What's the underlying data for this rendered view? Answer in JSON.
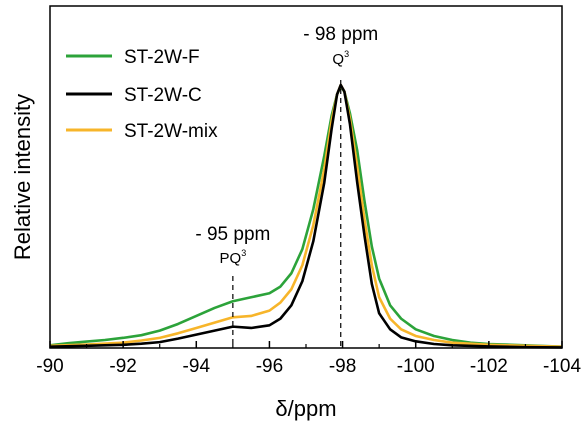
{
  "chart_data": {
    "type": "line",
    "xlabel": "δ/ppm",
    "ylabel": "Relative intensity",
    "xlim": [
      -90,
      -104
    ],
    "x_reversed": true,
    "xticks": [
      -90,
      -92,
      -94,
      -96,
      -98,
      -100,
      -102,
      -104
    ],
    "xtick_labels": [
      "-90",
      "-92",
      "-94",
      "-96",
      "-98",
      "-100",
      "-102",
      "-104"
    ],
    "ylim": [
      0,
      1.0
    ],
    "grid": false,
    "legend_position": "top-left",
    "series": [
      {
        "name": "ST-2W-F",
        "color": "#2ca33a",
        "x": [
          -90,
          -90.5,
          -91,
          -91.5,
          -92,
          -92.5,
          -93,
          -93.5,
          -94,
          -94.5,
          -95,
          -95.5,
          -96,
          -96.3,
          -96.6,
          -96.9,
          -97.2,
          -97.5,
          -97.7,
          -97.85,
          -97.95,
          -98.05,
          -98.2,
          -98.4,
          -98.6,
          -98.8,
          -99,
          -99.3,
          -99.6,
          -100,
          -100.5,
          -101,
          -101.5,
          -102,
          -103,
          -104
        ],
        "values": [
          0.01,
          0.018,
          0.024,
          0.03,
          0.038,
          0.048,
          0.065,
          0.09,
          0.12,
          0.15,
          0.175,
          0.19,
          0.205,
          0.23,
          0.28,
          0.37,
          0.52,
          0.72,
          0.87,
          0.95,
          0.98,
          0.96,
          0.88,
          0.74,
          0.55,
          0.38,
          0.26,
          0.16,
          0.11,
          0.07,
          0.045,
          0.03,
          0.02,
          0.015,
          0.01,
          0.005
        ]
      },
      {
        "name": "ST-2W-C",
        "color": "#000000",
        "x": [
          -90,
          -91,
          -92,
          -92.5,
          -93,
          -93.5,
          -94,
          -94.5,
          -95,
          -95.5,
          -96,
          -96.3,
          -96.6,
          -96.9,
          -97.2,
          -97.5,
          -97.7,
          -97.85,
          -97.95,
          -98.05,
          -98.2,
          -98.4,
          -98.6,
          -98.8,
          -99,
          -99.3,
          -99.6,
          -100,
          -100.5,
          -101,
          -102,
          -103,
          -104
        ],
        "values": [
          0.005,
          0.008,
          0.012,
          0.016,
          0.022,
          0.035,
          0.05,
          0.065,
          0.08,
          0.075,
          0.085,
          0.11,
          0.16,
          0.25,
          0.4,
          0.62,
          0.82,
          0.95,
          0.985,
          0.96,
          0.84,
          0.62,
          0.42,
          0.24,
          0.13,
          0.07,
          0.04,
          0.025,
          0.015,
          0.01,
          0.006,
          0.003,
          0.002
        ]
      },
      {
        "name": "ST-2W-mix",
        "color": "#f7b52a",
        "x": [
          -90,
          -91,
          -92,
          -92.5,
          -93,
          -93.5,
          -94,
          -94.5,
          -95,
          -95.5,
          -96,
          -96.3,
          -96.6,
          -96.9,
          -97.2,
          -97.5,
          -97.7,
          -97.85,
          -97.95,
          -98.05,
          -98.2,
          -98.4,
          -98.6,
          -98.8,
          -99,
          -99.3,
          -99.6,
          -100,
          -100.5,
          -101,
          -102,
          -103,
          -104
        ],
        "values": [
          0.008,
          0.013,
          0.02,
          0.028,
          0.038,
          0.055,
          0.075,
          0.095,
          0.115,
          0.12,
          0.14,
          0.17,
          0.22,
          0.31,
          0.46,
          0.67,
          0.85,
          0.95,
          0.985,
          0.96,
          0.86,
          0.68,
          0.48,
          0.31,
          0.19,
          0.11,
          0.07,
          0.045,
          0.03,
          0.02,
          0.012,
          0.008,
          0.005
        ]
      }
    ],
    "annotations": [
      {
        "id": "q3",
        "line_x": -97.95,
        "text": "- 98 ppm",
        "label": "Q",
        "sup": "3"
      },
      {
        "id": "pq3",
        "line_x": -95.0,
        "text": "- 95 ppm",
        "label": "PQ",
        "sup": "3"
      }
    ]
  }
}
